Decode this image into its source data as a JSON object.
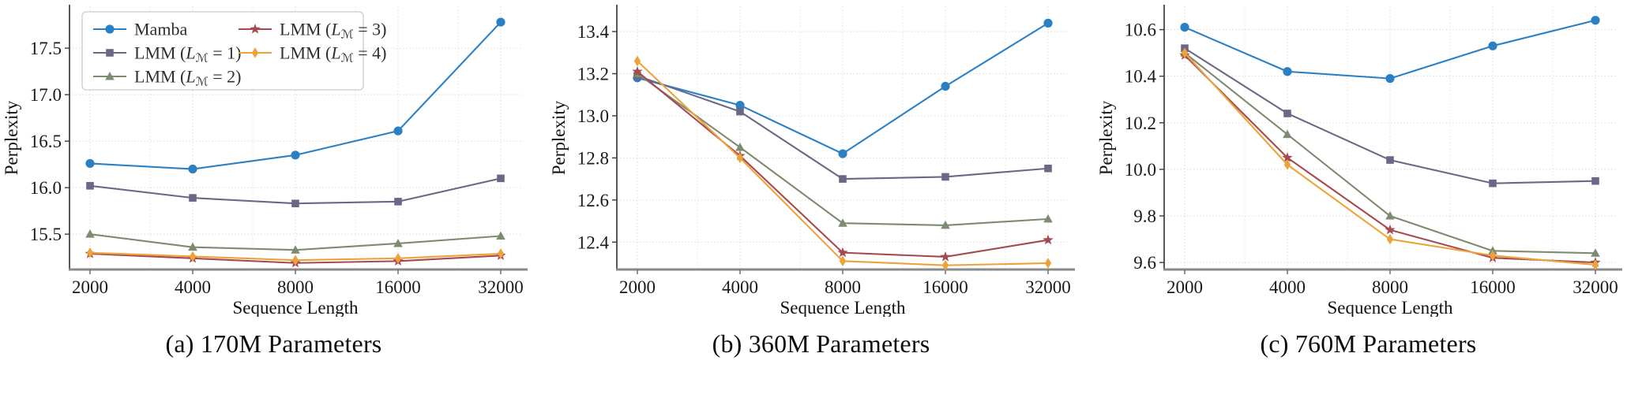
{
  "figure": {
    "background": "#ffffff",
    "grid_color": "#d9d9d9",
    "left_spine_color": "#3a3a3a",
    "bottom_spine_color": "#8a8a8a",
    "tick_label_color": "#1a1a1a"
  },
  "chart_data": [
    {
      "type": "line",
      "caption": "(a) 170M Parameters",
      "xlabel": "Sequence Length",
      "ylabel": "Perplexity",
      "x_categories": [
        "2000",
        "4000",
        "8000",
        "16000",
        "32000"
      ],
      "x_values": [
        2000,
        4000,
        8000,
        16000,
        32000
      ],
      "x_scale": "log2",
      "ytick_labels": [
        "15.5",
        "16.0",
        "16.5",
        "17.0",
        "17.5"
      ],
      "yticks": [
        15.5,
        16.0,
        16.5,
        17.0,
        17.5
      ],
      "ylim": [
        15.12,
        17.95
      ],
      "grid": true,
      "legend": {
        "visible": true,
        "position": "upper-left",
        "columns": 2,
        "column_rows": [
          3,
          2
        ]
      },
      "series": [
        {
          "name": "Mamba",
          "marker": "circle",
          "color": "#2b80c4",
          "values": [
            16.26,
            16.2,
            16.35,
            16.61,
            17.78
          ]
        },
        {
          "name": "LMM (Lℳ = 1)",
          "marker": "square",
          "color": "#6c6787",
          "values": [
            16.02,
            15.89,
            15.83,
            15.85,
            16.1
          ]
        },
        {
          "name": "LMM (Lℳ = 2)",
          "marker": "triangle",
          "color": "#7d8b70",
          "values": [
            15.5,
            15.36,
            15.33,
            15.4,
            15.48
          ]
        },
        {
          "name": "LMM (Lℳ = 3)",
          "marker": "star",
          "color": "#a54a4e",
          "values": [
            15.29,
            15.24,
            15.19,
            15.21,
            15.27
          ]
        },
        {
          "name": "LMM (Lℳ = 4)",
          "marker": "thin-diamond",
          "color": "#eda33b",
          "values": [
            15.3,
            15.26,
            15.22,
            15.24,
            15.29
          ]
        }
      ]
    },
    {
      "type": "line",
      "caption": "(b) 360M Parameters",
      "xlabel": "Sequence Length",
      "ylabel": "Perplexity",
      "x_categories": [
        "2000",
        "4000",
        "8000",
        "16000",
        "32000"
      ],
      "x_values": [
        2000,
        4000,
        8000,
        16000,
        32000
      ],
      "x_scale": "log2",
      "ytick_labels": [
        "12.4",
        "12.6",
        "12.8",
        "13.0",
        "13.2",
        "13.4"
      ],
      "yticks": [
        12.4,
        12.6,
        12.8,
        13.0,
        13.2,
        13.4
      ],
      "ylim": [
        12.27,
        13.52
      ],
      "grid": true,
      "legend": {
        "visible": false
      },
      "series": [
        {
          "name": "Mamba",
          "marker": "circle",
          "color": "#2b80c4",
          "values": [
            13.18,
            13.05,
            12.82,
            13.14,
            13.44
          ]
        },
        {
          "name": "LMM (Lℳ = 1)",
          "marker": "square",
          "color": "#6c6787",
          "values": [
            13.19,
            13.02,
            12.7,
            12.71,
            12.75
          ]
        },
        {
          "name": "LMM (Lℳ = 2)",
          "marker": "triangle",
          "color": "#7d8b70",
          "values": [
            13.2,
            12.85,
            12.49,
            12.48,
            12.51
          ]
        },
        {
          "name": "LMM (Lℳ = 3)",
          "marker": "star",
          "color": "#a54a4e",
          "values": [
            13.21,
            12.81,
            12.35,
            12.33,
            12.41
          ]
        },
        {
          "name": "LMM (Lℳ = 4)",
          "marker": "thin-diamond",
          "color": "#eda33b",
          "values": [
            13.26,
            12.8,
            12.31,
            12.29,
            12.3
          ]
        }
      ]
    },
    {
      "type": "line",
      "caption": "(c) 760M Parameters",
      "xlabel": "Sequence Length",
      "ylabel": "Perplexity",
      "x_categories": [
        "2000",
        "4000",
        "8000",
        "16000",
        "32000"
      ],
      "x_values": [
        2000,
        4000,
        8000,
        16000,
        32000
      ],
      "x_scale": "log2",
      "ytick_labels": [
        "9.6",
        "9.8",
        "10.0",
        "10.2",
        "10.4",
        "10.6"
      ],
      "yticks": [
        9.6,
        9.8,
        10.0,
        10.2,
        10.4,
        10.6
      ],
      "ylim": [
        9.57,
        10.7
      ],
      "grid": true,
      "legend": {
        "visible": false
      },
      "series": [
        {
          "name": "Mamba",
          "marker": "circle",
          "color": "#2b80c4",
          "values": [
            10.61,
            10.42,
            10.39,
            10.53,
            10.64
          ]
        },
        {
          "name": "LMM (Lℳ = 1)",
          "marker": "square",
          "color": "#6c6787",
          "values": [
            10.52,
            10.24,
            10.04,
            9.94,
            9.95
          ]
        },
        {
          "name": "LMM (Lℳ = 2)",
          "marker": "triangle",
          "color": "#7d8b70",
          "values": [
            10.5,
            10.15,
            9.8,
            9.65,
            9.64
          ]
        },
        {
          "name": "LMM (Lℳ = 3)",
          "marker": "star",
          "color": "#a54a4e",
          "values": [
            10.49,
            10.05,
            9.74,
            9.62,
            9.6
          ]
        },
        {
          "name": "LMM (Lℳ = 4)",
          "marker": "thin-diamond",
          "color": "#eda33b",
          "values": [
            10.5,
            10.02,
            9.7,
            9.63,
            9.59
          ]
        }
      ]
    }
  ]
}
